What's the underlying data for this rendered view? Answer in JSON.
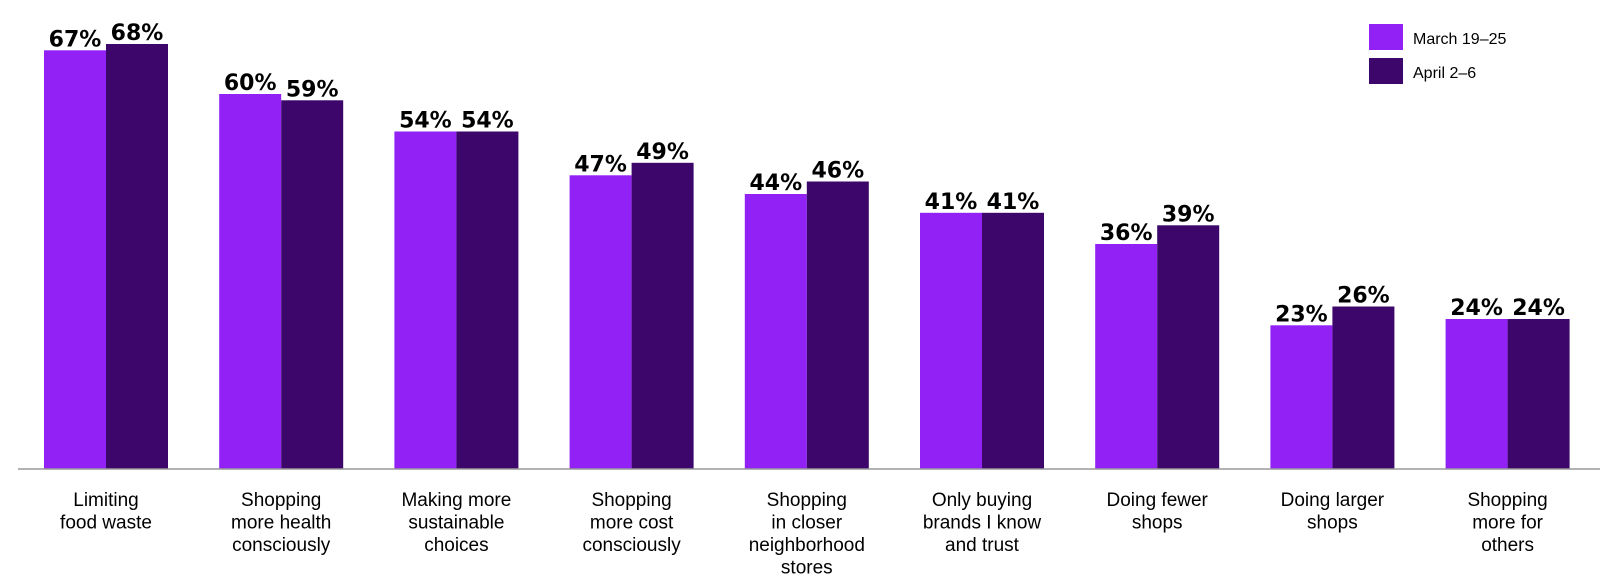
{
  "chart_data": {
    "type": "bar",
    "categories": [
      [
        "Limiting",
        "food waste"
      ],
      [
        "Shopping",
        "more health",
        "consciously"
      ],
      [
        "Making more",
        "sustainable",
        "choices"
      ],
      [
        "Shopping",
        "more cost",
        "consciously"
      ],
      [
        "Shopping",
        "in closer",
        "neighborhood",
        "stores"
      ],
      [
        "Only buying",
        "brands I know",
        "and trust"
      ],
      [
        "Doing fewer",
        "shops"
      ],
      [
        "Doing larger",
        "shops"
      ],
      [
        "Shopping",
        "more for",
        "others"
      ]
    ],
    "series": [
      {
        "name": "March 19–25",
        "color": "#9121f5",
        "values": [
          67,
          60,
          54,
          47,
          44,
          41,
          36,
          23,
          24
        ],
        "labels": [
          "67%",
          "60%",
          "54%",
          "47%",
          "44%",
          "41%",
          "36%",
          "23%",
          "24%"
        ]
      },
      {
        "name": "April 2–6",
        "color": "#3c066a",
        "values": [
          68,
          59,
          54,
          49,
          46,
          41,
          39,
          26,
          24
        ],
        "labels": [
          "68%",
          "59%",
          "54%",
          "49%",
          "46%",
          "41%",
          "39%",
          "26%",
          "24%"
        ]
      }
    ],
    "ylim": [
      0,
      100
    ],
    "grid": false,
    "legend_position": "top-right",
    "axis_color": "#999999"
  }
}
